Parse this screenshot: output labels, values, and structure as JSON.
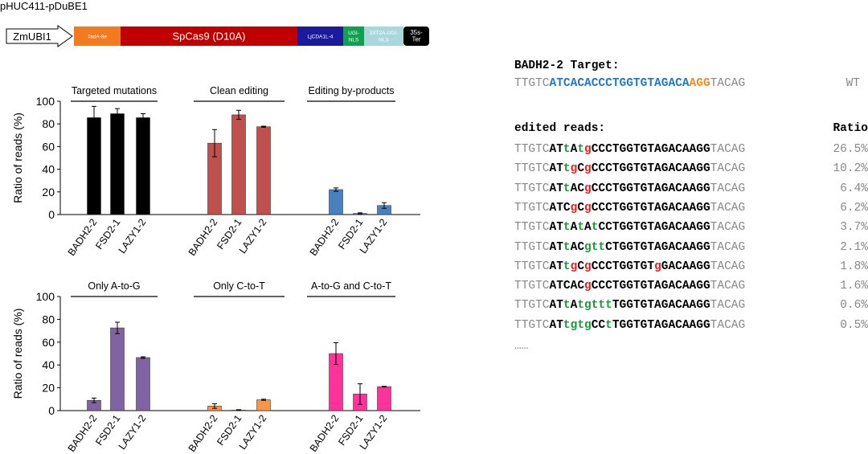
{
  "construct": {
    "name": "pHUC411-pDuBE1",
    "promoter": "ZmUBI1",
    "segments": [
      {
        "label": "TadA-8e",
        "color": "#f47a20"
      },
      {
        "label": "SpCas9 (D10A)",
        "color": "#c00000"
      },
      {
        "label": "LjCDA1L-4",
        "color": "#1a1a9a"
      },
      {
        "label": "UGI-\nNLS",
        "color": "#10a050"
      },
      {
        "label": "3XT2A-UGI-\nNLS",
        "color": "#a8d8dc"
      },
      {
        "label": "35s-\nTer",
        "color": "#000000"
      }
    ]
  },
  "chart_data": [
    {
      "type": "bar",
      "ylabel": "Ratio of reads (%)",
      "ylim": [
        0,
        100
      ],
      "yticks": [
        0,
        20,
        40,
        60,
        80,
        100
      ],
      "groups": [
        {
          "title": "Targeted mutations",
          "color": "#000000",
          "categories": [
            "BADH2-2",
            "FSD2-1",
            "LAZY1-2"
          ],
          "values": [
            85.5,
            89,
            85.5
          ],
          "errors": [
            10,
            4.5,
            3.5
          ]
        },
        {
          "title": "Clean editing",
          "color": "#c0504d",
          "categories": [
            "BADH2-2",
            "FSD2-1",
            "LAZY1-2"
          ],
          "values": [
            63,
            88,
            77.5
          ],
          "errors": [
            12,
            4,
            0.5
          ]
        },
        {
          "title": "Editing by-products",
          "color": "#4a7fc0",
          "categories": [
            "BADH2-2",
            "FSD2-1",
            "LAZY1-2"
          ],
          "values": [
            22,
            1,
            8
          ],
          "errors": [
            1.5,
            0.5,
            2.5
          ]
        }
      ]
    },
    {
      "type": "bar",
      "ylabel": "Ratio of reads (%)",
      "ylim": [
        0,
        100
      ],
      "yticks": [
        0,
        20,
        40,
        60,
        80,
        100
      ],
      "groups": [
        {
          "title": "Only A-to-G",
          "color": "#8064a2",
          "categories": [
            "BADH2-2",
            "FSD2-1",
            "LAZY1-2"
          ],
          "values": [
            9,
            72.5,
            46.5
          ],
          "errors": [
            2,
            5,
            0.7
          ]
        },
        {
          "title": "Only C-to-T",
          "color": "#f79646",
          "categories": [
            "BADH2-2",
            "FSD2-1",
            "LAZY1-2"
          ],
          "values": [
            4,
            0.5,
            9.5
          ],
          "errors": [
            2,
            0.3,
            0.5
          ]
        },
        {
          "title": "A-to-G and C-to-T",
          "color": "#ff3399",
          "categories": [
            "BADH2-2",
            "FSD2-1",
            "LAZY1-2"
          ],
          "values": [
            50,
            14.5,
            21
          ],
          "errors": [
            9.5,
            9,
            0.3
          ]
        }
      ]
    }
  ],
  "sequences": {
    "target_title": "BADH2-2 Target:",
    "wt": {
      "segments": [
        {
          "text": "TTGTC",
          "style": "gray"
        },
        {
          "text": "ATCACACCCTGGTGTAGACA",
          "style": "blue"
        },
        {
          "text": "AGG",
          "style": "orange"
        },
        {
          "text": "TACAG",
          "style": "gray"
        }
      ],
      "label": "WT"
    },
    "edited_title": "edited reads:",
    "ratio_title": "Ratio",
    "reads": [
      {
        "ratio": "26.5%",
        "segments": [
          {
            "text": "TTGTC",
            "style": "gray"
          },
          {
            "text": "AT",
            "style": "b"
          },
          {
            "text": "t",
            "style": "ed-green"
          },
          {
            "text": "A",
            "style": "b"
          },
          {
            "text": "t",
            "style": "ed-green"
          },
          {
            "text": "g",
            "style": "ed-red"
          },
          {
            "text": "CCCTGGTGTAGACAAGG",
            "style": "b"
          },
          {
            "text": "TACAG",
            "style": "gray"
          }
        ]
      },
      {
        "ratio": "10.2%",
        "segments": [
          {
            "text": "TTGTC",
            "style": "gray"
          },
          {
            "text": "AT",
            "style": "b"
          },
          {
            "text": "t",
            "style": "ed-green"
          },
          {
            "text": "g",
            "style": "ed-red"
          },
          {
            "text": "C",
            "style": "b"
          },
          {
            "text": "g",
            "style": "ed-red"
          },
          {
            "text": "CCCTGGTGTAGACAAGG",
            "style": "b"
          },
          {
            "text": "TACAG",
            "style": "gray"
          }
        ]
      },
      {
        "ratio": "6.4%",
        "segments": [
          {
            "text": "TTGTC",
            "style": "gray"
          },
          {
            "text": "AT",
            "style": "b"
          },
          {
            "text": "t",
            "style": "ed-green"
          },
          {
            "text": "AC",
            "style": "b"
          },
          {
            "text": "g",
            "style": "ed-red"
          },
          {
            "text": "CCCTGGTGTAGACAAGG",
            "style": "b"
          },
          {
            "text": "TACAG",
            "style": "gray"
          }
        ]
      },
      {
        "ratio": "6.2%",
        "segments": [
          {
            "text": "TTGTC",
            "style": "gray"
          },
          {
            "text": "ATC",
            "style": "b"
          },
          {
            "text": "g",
            "style": "ed-red"
          },
          {
            "text": "C",
            "style": "b"
          },
          {
            "text": "g",
            "style": "ed-red"
          },
          {
            "text": "CCCTGGTGTAGACAAGG",
            "style": "b"
          },
          {
            "text": "TACAG",
            "style": "gray"
          }
        ]
      },
      {
        "ratio": "3.7%",
        "segments": [
          {
            "text": "TTGTC",
            "style": "gray"
          },
          {
            "text": "AT",
            "style": "b"
          },
          {
            "text": "t",
            "style": "ed-green"
          },
          {
            "text": "A",
            "style": "b"
          },
          {
            "text": "t",
            "style": "ed-green"
          },
          {
            "text": "A",
            "style": "b"
          },
          {
            "text": "t",
            "style": "ed-green"
          },
          {
            "text": "CCTGGTGTAGACAAGG",
            "style": "b"
          },
          {
            "text": "TACAG",
            "style": "gray"
          }
        ]
      },
      {
        "ratio": "2.1%",
        "segments": [
          {
            "text": "TTGTC",
            "style": "gray"
          },
          {
            "text": "AT",
            "style": "b"
          },
          {
            "text": "t",
            "style": "ed-green"
          },
          {
            "text": "AC",
            "style": "b"
          },
          {
            "text": "gtt",
            "style": "ed-green"
          },
          {
            "text": "CTGGTGTAGACAAGG",
            "style": "b"
          },
          {
            "text": "TACAG",
            "style": "gray"
          }
        ]
      },
      {
        "ratio": "1.8%",
        "segments": [
          {
            "text": "TTGTC",
            "style": "gray"
          },
          {
            "text": "AT",
            "style": "b"
          },
          {
            "text": "t",
            "style": "ed-green"
          },
          {
            "text": "g",
            "style": "ed-red"
          },
          {
            "text": "C",
            "style": "b"
          },
          {
            "text": "g",
            "style": "ed-red"
          },
          {
            "text": "CCCTGGTGT",
            "style": "b"
          },
          {
            "text": "g",
            "style": "ed-red"
          },
          {
            "text": "GACAAGG",
            "style": "b"
          },
          {
            "text": "TACAG",
            "style": "gray"
          }
        ]
      },
      {
        "ratio": "1.6%",
        "segments": [
          {
            "text": "TTGTC",
            "style": "gray"
          },
          {
            "text": "ATCAC",
            "style": "b"
          },
          {
            "text": "g",
            "style": "ed-red"
          },
          {
            "text": "CCCTGGTGTAGACAAGG",
            "style": "b"
          },
          {
            "text": "TACAG",
            "style": "gray"
          }
        ]
      },
      {
        "ratio": "0.6%",
        "segments": [
          {
            "text": "TTGTC",
            "style": "gray"
          },
          {
            "text": "AT",
            "style": "b"
          },
          {
            "text": "t",
            "style": "ed-green"
          },
          {
            "text": "A",
            "style": "b"
          },
          {
            "text": "tg",
            "style": "ed-green"
          },
          {
            "text": "ttt",
            "style": "ed-green"
          },
          {
            "text": "TGGTGTAGACAAGG",
            "style": "b"
          },
          {
            "text": "TACAG",
            "style": "gray"
          }
        ]
      },
      {
        "ratio": "0.5%",
        "segments": [
          {
            "text": "TTGTC",
            "style": "gray"
          },
          {
            "text": "AT",
            "style": "b"
          },
          {
            "text": "tgtg",
            "style": "ed-green"
          },
          {
            "text": "CC",
            "style": "b"
          },
          {
            "text": "t",
            "style": "ed-green"
          },
          {
            "text": "TGGTGTAGACAAGG",
            "style": "b"
          },
          {
            "text": "TACAG",
            "style": "gray"
          }
        ]
      }
    ],
    "ellipsis": "……"
  }
}
